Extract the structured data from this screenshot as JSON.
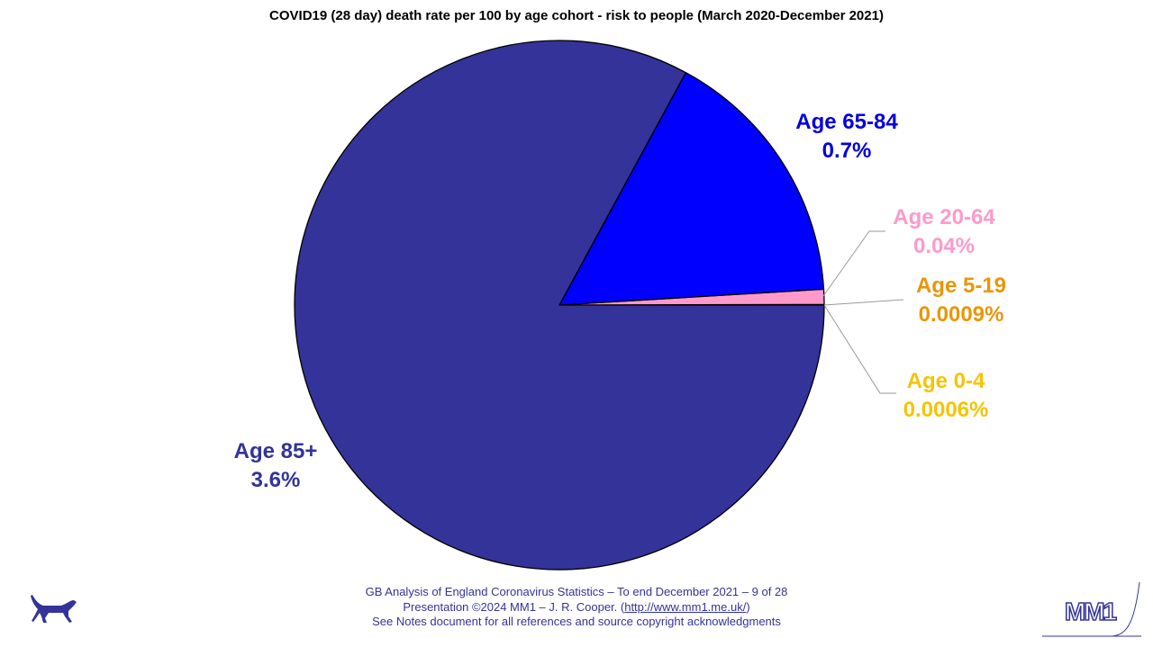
{
  "chart_data": {
    "type": "pie",
    "title": "COVID19 (28 day) death rate per 100 by age cohort - risk to people (March 2020-December 2021)",
    "slices": [
      {
        "label": "Age 0-4",
        "value_label": "0.0006%",
        "value": 0.0006,
        "color": "#ffcc00"
      },
      {
        "label": "Age 5-19",
        "value_label": "0.0009%",
        "value": 0.0009,
        "color": "#ee9a00"
      },
      {
        "label": "Age 20-64",
        "value_label": "0.04%",
        "value": 0.04,
        "color": "#ff99cc"
      },
      {
        "label": "Age 65-84",
        "value_label": "0.7%",
        "value": 0.7,
        "color": "#0000ff"
      },
      {
        "label": "Age 85+",
        "value_label": "3.6%",
        "value": 3.6,
        "color": "#333399"
      }
    ],
    "label_colors": {
      "Age 0-4": "#f5c400",
      "Age 5-19": "#e8960a",
      "Age 20-64": "#ff99cc",
      "Age 65-84": "#0000dd",
      "Age 85+": "#333399"
    }
  },
  "footer": {
    "line1": "GB Analysis of England Coronavirus Statistics – To end December 2021 – 9 of 28",
    "line2_prefix": "Presentation ©2024 MM1 – J. R. Cooper. (",
    "line2_link": "http://www.mm1.me.uk/",
    "line2_suffix": ")",
    "line3": "See Notes document for all references and source copyright acknowledgments"
  },
  "logos": {
    "left": "dog-silhouette-icon",
    "right_text": "MM1"
  }
}
